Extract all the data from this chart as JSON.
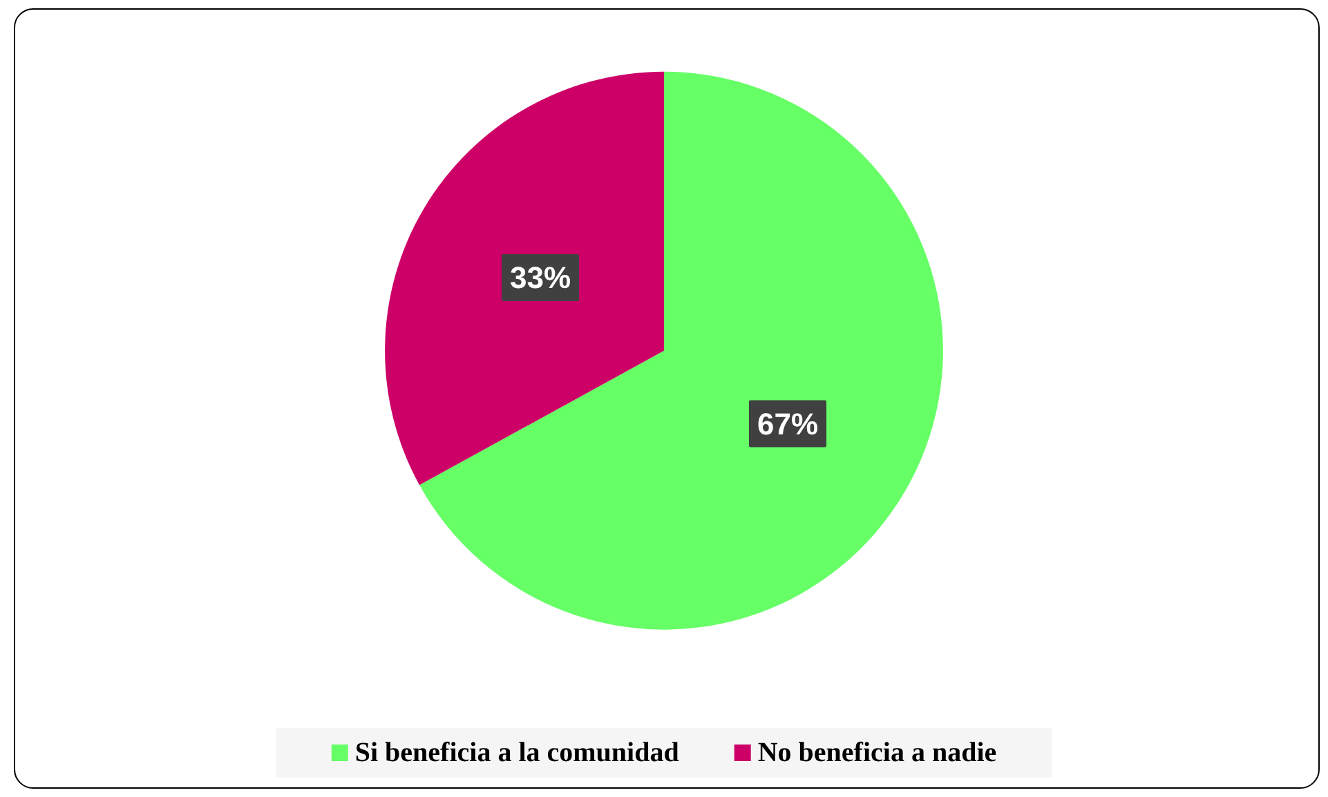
{
  "chart_data": {
    "type": "pie",
    "categories": [
      "Si beneficia a la comunidad",
      "No beneficia a nadie"
    ],
    "values": [
      67,
      33
    ],
    "colors": [
      "#66ff66",
      "#cc0066"
    ],
    "value_labels": [
      "67%",
      "33%"
    ],
    "legend": "bottom"
  }
}
